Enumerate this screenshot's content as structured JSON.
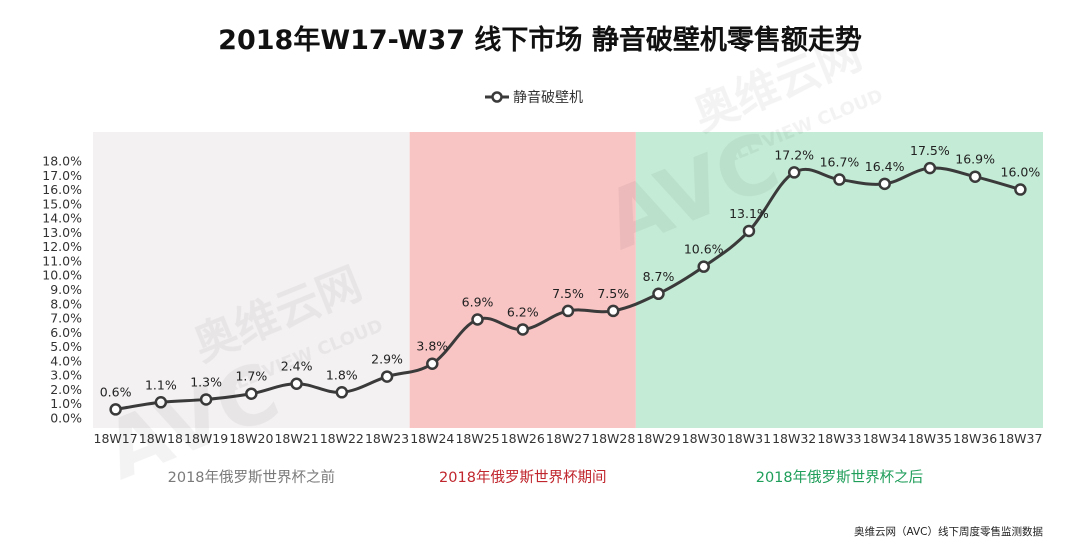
{
  "chart_data": {
    "type": "line",
    "title": "2018年W17-W37 线下市场  静音破壁机零售额走势",
    "categories": [
      "18W17",
      "18W18",
      "18W19",
      "18W20",
      "18W21",
      "18W22",
      "18W23",
      "18W24",
      "18W25",
      "18W26",
      "18W27",
      "18W28",
      "18W29",
      "18W30",
      "18W31",
      "18W32",
      "18W33",
      "18W34",
      "18W35",
      "18W36",
      "18W37"
    ],
    "series": [
      {
        "name": "静音破壁机",
        "values": [
          0.6,
          1.1,
          1.3,
          1.7,
          2.4,
          1.8,
          2.9,
          3.8,
          6.9,
          6.2,
          7.5,
          7.5,
          8.7,
          10.6,
          13.1,
          17.2,
          16.7,
          16.4,
          17.5,
          16.9,
          16.0
        ],
        "data_labels": [
          "0.6%",
          "1.1%",
          "1.3%",
          "1.7%",
          "2.4%",
          "1.8%",
          "2.9%",
          "3.8%",
          "6.9%",
          "6.2%",
          "7.5%",
          "7.5%",
          "8.7%",
          "10.6%",
          "13.1%",
          "17.2%",
          "16.7%",
          "16.4%",
          "17.5%",
          "16.9%",
          "16.0%"
        ],
        "color": "#3a3a3a"
      }
    ],
    "yticks": [
      "0.0%",
      "1.0%",
      "2.0%",
      "3.0%",
      "4.0%",
      "5.0%",
      "6.0%",
      "7.0%",
      "8.0%",
      "9.0%",
      "10.0%",
      "11.0%",
      "12.0%",
      "13.0%",
      "14.0%",
      "15.0%",
      "16.0%",
      "17.0%",
      "18.0%"
    ],
    "ylim": [
      0,
      18
    ],
    "grid": false,
    "legend": "top-center",
    "phases": [
      {
        "label": "2018年俄罗斯世界杯之前",
        "from": "18W17",
        "to": "18W23",
        "bg": "#f3f1f2",
        "text_color": "#7a7a7a"
      },
      {
        "label": "2018年俄罗斯世界杯期间",
        "from": "18W24",
        "to": "18W28",
        "bg": "#f8c4c4",
        "text_color": "#c0262d"
      },
      {
        "label": "2018年俄罗斯世界杯之后",
        "from": "18W29",
        "to": "18W37",
        "bg": "#c4ebd6",
        "text_color": "#1f9e5a"
      }
    ]
  },
  "source": "奥维云网（AVC）线下周度零售监测数据",
  "watermark": {
    "logo": "AVC",
    "cn": "奥维云网",
    "en": "ALL VIEW CLOUD"
  }
}
